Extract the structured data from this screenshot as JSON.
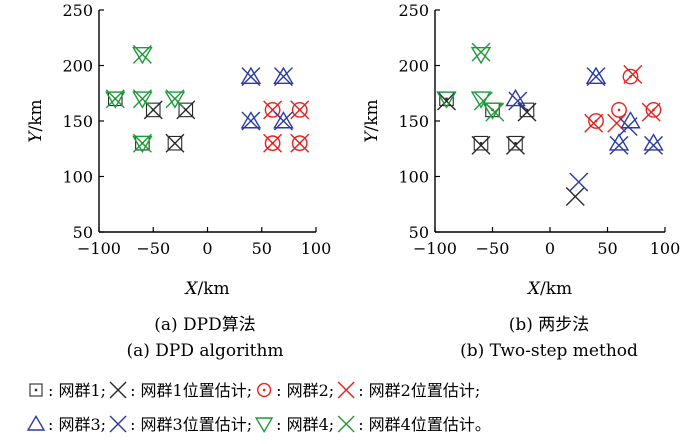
{
  "colors": {
    "group1": "#2a2a2a",
    "group2": "#e8201d",
    "group3": "#2b3aa6",
    "group4": "#1f9a3a"
  },
  "axes": {
    "xlabel_var": "X",
    "ylabel_var": "Y",
    "unit": "/km"
  },
  "chart_data": [
    {
      "type": "scatter",
      "caption_cn": "(a) DPD算法",
      "caption_en": "(a) DPD algorithm",
      "xlim": [
        -100,
        100
      ],
      "ylim": [
        50,
        250
      ],
      "xticks": [
        -100,
        -50,
        0,
        50,
        100
      ],
      "yticks": [
        50,
        100,
        150,
        200,
        250
      ],
      "series": [
        {
          "name": "网群1",
          "marker": "square",
          "color_key": "group1",
          "points": [
            [
              -85,
              170
            ],
            [
              -50,
              160
            ],
            [
              -20,
              160
            ],
            [
              -60,
              130
            ],
            [
              -30,
              130
            ]
          ]
        },
        {
          "name": "网群1位置估计",
          "marker": "x",
          "color_key": "group1",
          "points": [
            [
              -50,
              160
            ],
            [
              -20,
              160
            ],
            [
              -30,
              130
            ]
          ]
        },
        {
          "name": "网群2",
          "marker": "circle",
          "color_key": "group2",
          "points": [
            [
              60,
              160
            ],
            [
              85,
              160
            ],
            [
              60,
              130
            ],
            [
              85,
              130
            ]
          ]
        },
        {
          "name": "网群2位置估计",
          "marker": "x",
          "color_key": "group2",
          "points": [
            [
              60,
              160
            ],
            [
              85,
              160
            ],
            [
              60,
              130
            ],
            [
              85,
              130
            ]
          ]
        },
        {
          "name": "网群3",
          "marker": "triangle-up",
          "color_key": "group3",
          "points": [
            [
              40,
              190
            ],
            [
              70,
              190
            ],
            [
              40,
              150
            ],
            [
              70,
              150
            ]
          ]
        },
        {
          "name": "网群3位置估计",
          "marker": "x",
          "color_key": "group3",
          "points": [
            [
              40,
              190
            ],
            [
              70,
              190
            ],
            [
              40,
              150
            ],
            [
              70,
              150
            ]
          ]
        },
        {
          "name": "网群4",
          "marker": "triangle-down",
          "color_key": "group4",
          "points": [
            [
              -60,
              210
            ],
            [
              -85,
              170
            ],
            [
              -60,
              170
            ],
            [
              -30,
              170
            ],
            [
              -60,
              130
            ]
          ]
        },
        {
          "name": "网群4位置估计",
          "marker": "x",
          "color_key": "group4",
          "points": [
            [
              -60,
              210
            ],
            [
              -85,
              170
            ],
            [
              -60,
              170
            ],
            [
              -30,
              170
            ],
            [
              -60,
              130
            ]
          ]
        }
      ]
    },
    {
      "type": "scatter",
      "caption_cn": "(b) 两步法",
      "caption_en": "(b) Two-step method",
      "xlim": [
        -100,
        100
      ],
      "ylim": [
        50,
        250
      ],
      "xticks": [
        -100,
        -50,
        0,
        50,
        100
      ],
      "yticks": [
        50,
        100,
        150,
        200,
        250
      ],
      "series": [
        {
          "name": "网群1",
          "marker": "square",
          "color_key": "group1",
          "points": [
            [
              -90,
              170
            ],
            [
              -50,
              160
            ],
            [
              -20,
              160
            ],
            [
              -60,
              130
            ],
            [
              -30,
              130
            ]
          ]
        },
        {
          "name": "网群1位置估计",
          "marker": "x",
          "color_key": "group1",
          "points": [
            [
              -90,
              168
            ],
            [
              -20,
              158
            ],
            [
              -60,
              128
            ],
            [
              -30,
              128
            ],
            [
              22,
              82
            ]
          ]
        },
        {
          "name": "网群2",
          "marker": "circle",
          "color_key": "group2",
          "points": [
            [
              40,
              150
            ],
            [
              60,
              160
            ],
            [
              90,
              160
            ],
            [
              70,
              190
            ]
          ]
        },
        {
          "name": "网群2位置估计",
          "marker": "x",
          "color_key": "group2",
          "points": [
            [
              38,
              148
            ],
            [
              58,
              148
            ],
            [
              88,
              158
            ],
            [
              72,
              192
            ]
          ]
        },
        {
          "name": "网群3",
          "marker": "triangle-up",
          "color_key": "group3",
          "points": [
            [
              -30,
              170
            ],
            [
              40,
              190
            ],
            [
              70,
              150
            ],
            [
              60,
              130
            ],
            [
              90,
              130
            ]
          ]
        },
        {
          "name": "网群3位置估计",
          "marker": "x",
          "color_key": "group3",
          "points": [
            [
              -28,
              168
            ],
            [
              40,
              190
            ],
            [
              68,
              145
            ],
            [
              60,
              128
            ],
            [
              90,
              128
            ],
            [
              25,
              95
            ]
          ]
        },
        {
          "name": "网群4",
          "marker": "triangle-down",
          "color_key": "group4",
          "points": [
            [
              -60,
              210
            ],
            [
              -90,
              170
            ],
            [
              -60,
              170
            ],
            [
              -50,
              160
            ]
          ]
        },
        {
          "name": "网群4位置估计",
          "marker": "x",
          "color_key": "group4",
          "points": [
            [
              -60,
              212
            ],
            [
              -58,
              168
            ],
            [
              -48,
              158
            ]
          ]
        }
      ]
    }
  ],
  "legend": [
    {
      "marker": "square",
      "color_key": "group1",
      "label": "网群1"
    },
    {
      "marker": "x",
      "color_key": "group1",
      "label": "网群1位置估计"
    },
    {
      "marker": "circle",
      "color_key": "group2",
      "label": "网群2"
    },
    {
      "marker": "x",
      "color_key": "group2",
      "label": "网群2位置估计"
    },
    {
      "marker": "triangle-up",
      "color_key": "group3",
      "label": "网群3"
    },
    {
      "marker": "x",
      "color_key": "group3",
      "label": "网群3位置估计"
    },
    {
      "marker": "triangle-down",
      "color_key": "group4",
      "label": "网群4"
    },
    {
      "marker": "x",
      "color_key": "group4",
      "label": "网群4位置估计"
    }
  ],
  "legend_separators": {
    "item": ": ",
    "group": "; ",
    "end": "。"
  }
}
